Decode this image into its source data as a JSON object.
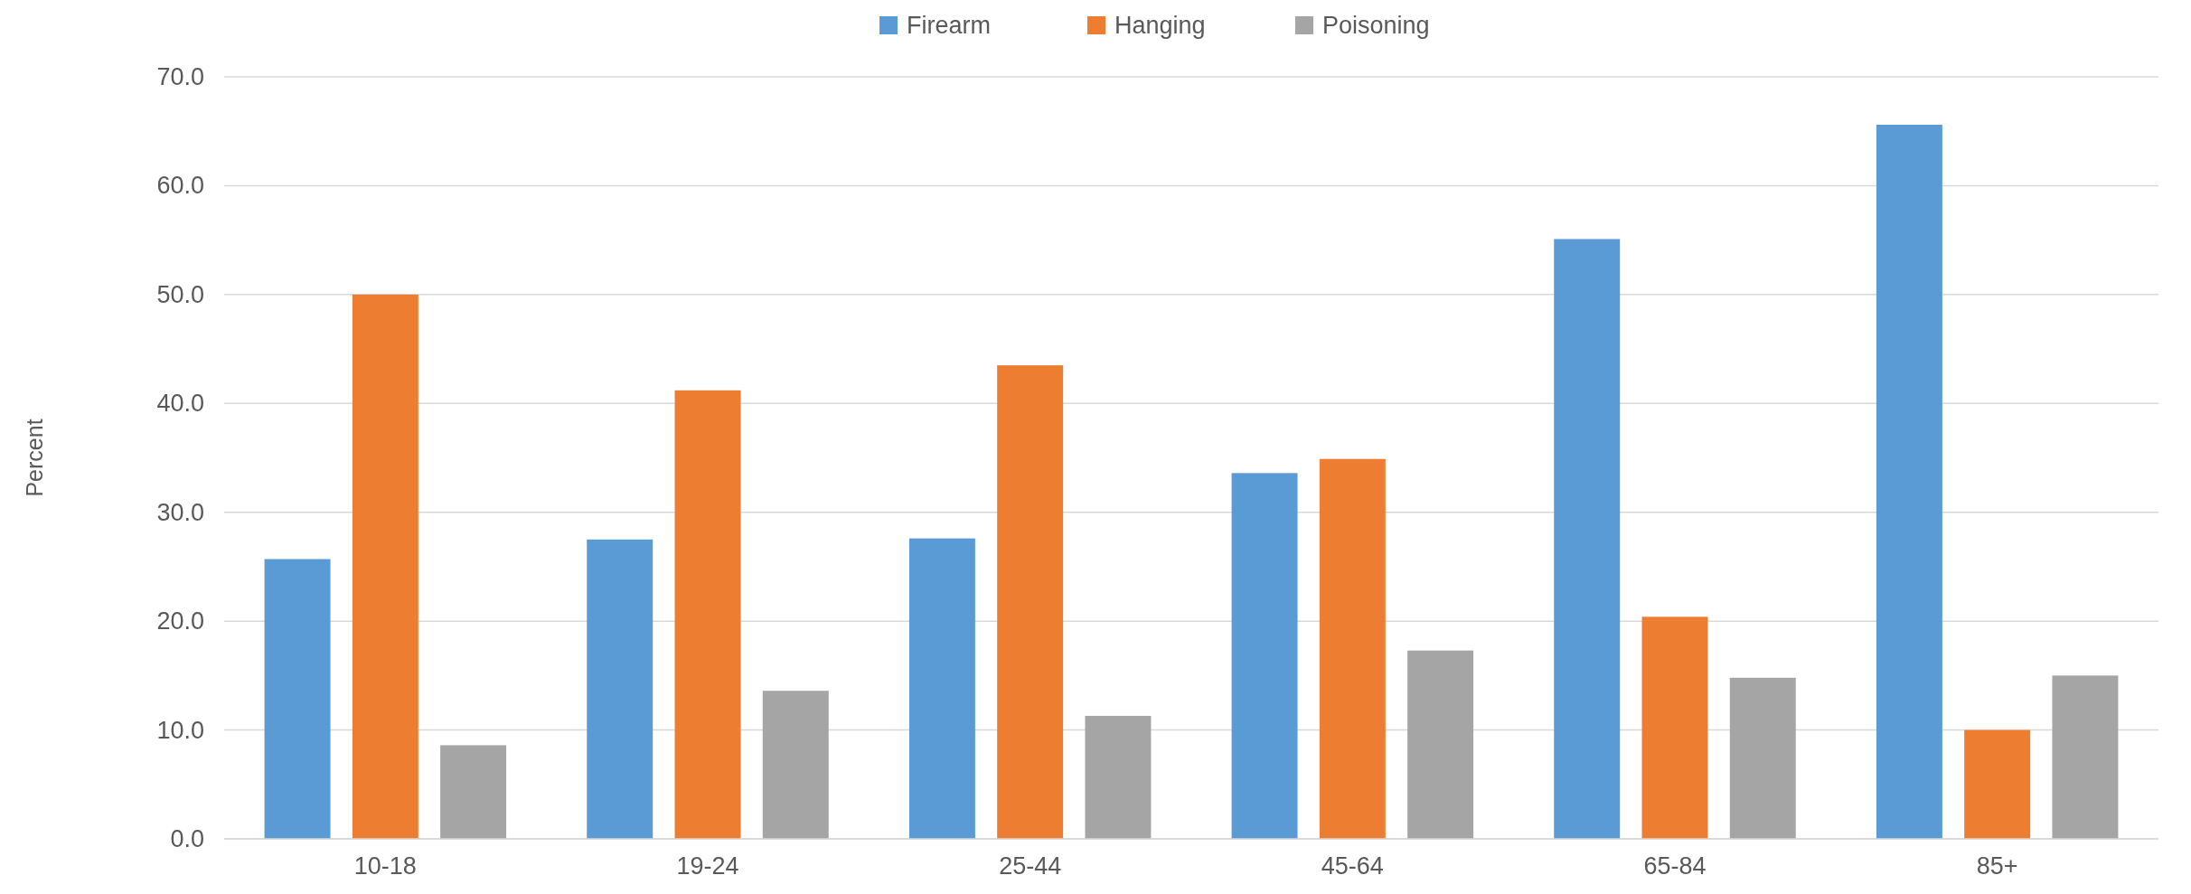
{
  "chart_data": {
    "type": "bar",
    "ylabel": "Percent",
    "categories": [
      "10-18",
      "19-24",
      "25-44",
      "45-64",
      "65-84",
      "85+"
    ],
    "series": [
      {
        "name": "Firearm",
        "color": "#5b9bd5",
        "values": [
          25.7,
          27.5,
          27.6,
          33.6,
          55.1,
          65.6
        ]
      },
      {
        "name": "Hanging",
        "color": "#ed7d31",
        "values": [
          50.0,
          41.2,
          43.5,
          34.9,
          20.4,
          10.0
        ]
      },
      {
        "name": "Poisoning",
        "color": "#a5a5a5",
        "values": [
          8.6,
          13.6,
          11.3,
          17.3,
          14.8,
          15.0
        ]
      }
    ],
    "ylim": [
      0,
      70
    ],
    "yticks": [
      {
        "value": 0,
        "label": "0.0"
      },
      {
        "value": 10,
        "label": "10.0"
      },
      {
        "value": 20,
        "label": "20.0"
      },
      {
        "value": 30,
        "label": "30.0"
      },
      {
        "value": 40,
        "label": "40.0"
      },
      {
        "value": 50,
        "label": "50.0"
      },
      {
        "value": 60,
        "label": "60.0"
      },
      {
        "value": 70,
        "label": "70.0"
      }
    ],
    "grid": "y",
    "legend": "top"
  }
}
